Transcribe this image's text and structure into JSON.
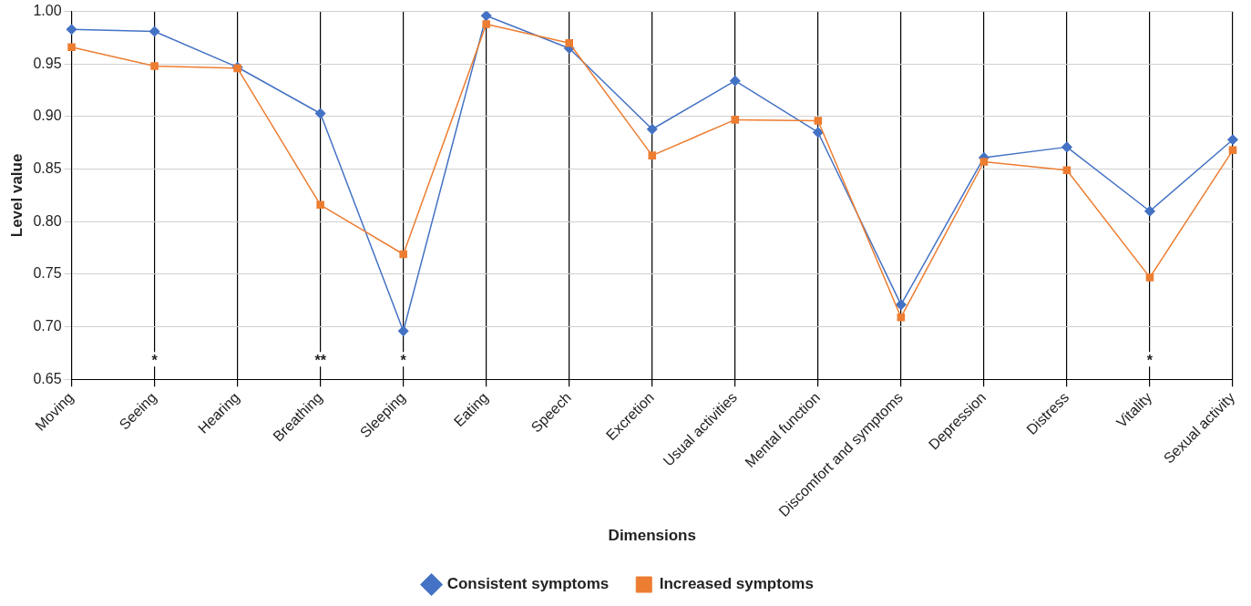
{
  "chart_data": {
    "type": "line",
    "xlabel": "Dimensions",
    "ylabel": "Level value",
    "categories": [
      "Moving",
      "Seeing",
      "Hearing",
      "Breathing",
      "Sleeping",
      "Eating",
      "Speech",
      "Excretion",
      "Usual activities",
      "Mental function",
      "Discomfort and symptoms",
      "Depression",
      "Distress",
      "Vitality",
      "Sexual activity"
    ],
    "series": [
      {
        "name": "Consistent symptoms",
        "color": "#4472c4",
        "marker": "diamond",
        "values": [
          0.983,
          0.981,
          0.947,
          0.903,
          0.696,
          0.996,
          0.965,
          0.888,
          0.934,
          0.885,
          0.721,
          0.861,
          0.871,
          0.81,
          0.878
        ]
      },
      {
        "name": "Increased symptoms",
        "color": "#ed7d31",
        "marker": "square",
        "values": [
          0.966,
          0.948,
          0.946,
          0.816,
          0.769,
          0.988,
          0.97,
          0.863,
          0.897,
          0.896,
          0.709,
          0.857,
          0.849,
          0.747,
          0.868
        ]
      }
    ],
    "ylim": [
      0.65,
      1.0
    ],
    "yticks": [
      {
        "value": 0.65,
        "label": "0.65"
      },
      {
        "value": 0.7,
        "label": "0.70"
      },
      {
        "value": 0.75,
        "label": "0.75"
      },
      {
        "value": 0.8,
        "label": "0.80"
      },
      {
        "value": 0.85,
        "label": "0.85"
      },
      {
        "value": 0.9,
        "label": "0.90"
      },
      {
        "value": 0.95,
        "label": "0.95"
      },
      {
        "value": 1.0,
        "label": "1.00"
      }
    ],
    "grid": true,
    "legend": "bottom",
    "line_style": "solid",
    "annotations": [
      {
        "text": "*",
        "x": "Seeing"
      },
      {
        "text": "**",
        "x": "Breathing"
      },
      {
        "text": "*",
        "x": "Sleeping"
      },
      {
        "text": "*",
        "x": "Vitality"
      }
    ]
  }
}
